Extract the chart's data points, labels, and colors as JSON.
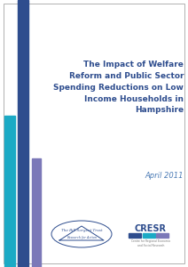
{
  "title_lines": [
    "The Impact of Welfare",
    "Reform and Public Sector",
    "Spending Reductions on Low",
    "Income Households in",
    "Hampshire"
  ],
  "subtitle": "April 2011",
  "bg_color": "#ffffff",
  "title_color": "#2E4D8E",
  "subtitle_color": "#4A7AB5",
  "bar_dark_blue_color": "#2E4D8E",
  "bar_teal_color": "#1BAAC5",
  "bar_purple_color": "#7B78B8",
  "border_color": "#b0b0b0",
  "logo_blue": "#2E4D8E",
  "cresr_bar_colors": [
    "#2E4D8E",
    "#1BAAC5",
    "#7B78B8"
  ],
  "note_color": "#888888"
}
